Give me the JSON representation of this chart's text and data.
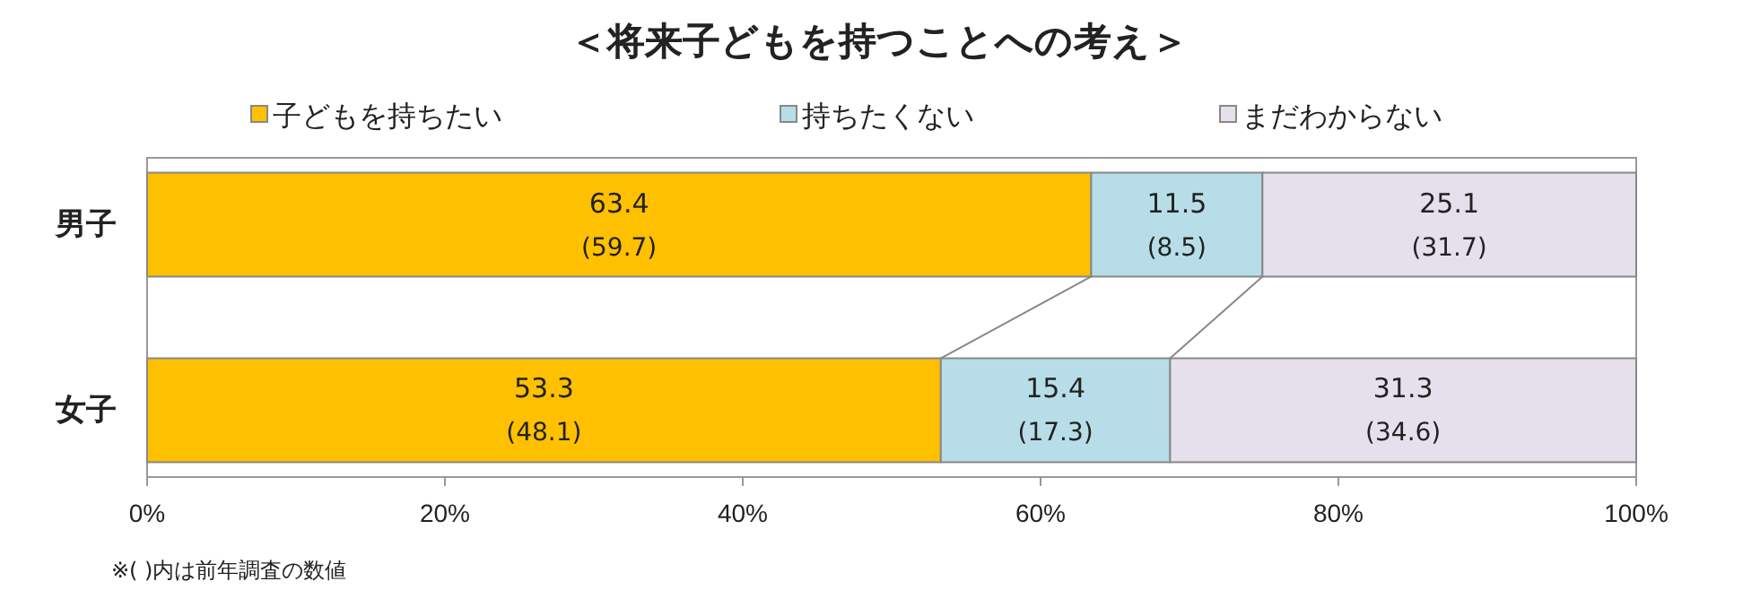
{
  "chart_data": {
    "type": "bar",
    "orientation": "horizontal",
    "stacked": true,
    "title": "＜将来子どもを持つことへの考え＞",
    "categories": [
      "男子",
      "女子"
    ],
    "series": [
      {
        "name": "子どもを持ちたい",
        "color": "#ffc000",
        "values": [
          63.4,
          53.3
        ],
        "value_labels": [
          "63.4\n(59.7)",
          "53.3\n(48.1)"
        ]
      },
      {
        "name": "持ちたくない",
        "color": "#b7dde8",
        "values": [
          11.5,
          15.4
        ],
        "value_labels": [
          "11.5\n(8.5)",
          "15.4\n(17.3)"
        ]
      },
      {
        "name": "まだわからない",
        "color": "#e6e0ec",
        "values": [
          25.1,
          31.3
        ],
        "value_labels": [
          "25.1\n(31.7)",
          "31.3\n(34.6)"
        ]
      }
    ],
    "xlim": [
      0,
      100
    ],
    "xticks": [
      {
        "value": 0,
        "label": "0%"
      },
      {
        "value": 20,
        "label": "20%"
      },
      {
        "value": 40,
        "label": "40%"
      },
      {
        "value": 60,
        "label": "60%"
      },
      {
        "value": 80,
        "label": "80%"
      },
      {
        "value": 100,
        "label": "100%"
      }
    ],
    "legend": "top",
    "grid": false,
    "annotations": [
      "※(  )内は前年調査の数値"
    ]
  }
}
